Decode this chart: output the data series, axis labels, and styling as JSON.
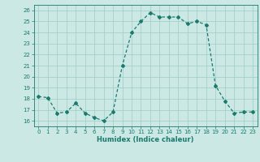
{
  "x": [
    0,
    1,
    2,
    3,
    4,
    5,
    6,
    7,
    8,
    9,
    10,
    11,
    12,
    13,
    14,
    15,
    16,
    17,
    18,
    19,
    20,
    21,
    22,
    23
  ],
  "y": [
    18.2,
    18.1,
    16.7,
    16.8,
    17.6,
    16.7,
    16.3,
    16.0,
    16.8,
    21.0,
    24.0,
    25.0,
    25.8,
    25.4,
    25.4,
    25.4,
    24.8,
    25.0,
    24.7,
    19.2,
    17.8,
    16.7,
    16.8,
    16.8
  ],
  "line_color": "#1a7a6e",
  "marker": "D",
  "marker_size": 2,
  "bg_color": "#cce8e4",
  "grid_color": "#9eccc6",
  "xlabel": "Humidex (Indice chaleur)",
  "xlim": [
    -0.5,
    23.5
  ],
  "ylim": [
    15.5,
    26.5
  ],
  "yticks": [
    16,
    17,
    18,
    19,
    20,
    21,
    22,
    23,
    24,
    25,
    26
  ],
  "xticks": [
    0,
    1,
    2,
    3,
    4,
    5,
    6,
    7,
    8,
    9,
    10,
    11,
    12,
    13,
    14,
    15,
    16,
    17,
    18,
    19,
    20,
    21,
    22,
    23
  ],
  "tick_color": "#1a7a6e",
  "label_color": "#1a7a6e"
}
